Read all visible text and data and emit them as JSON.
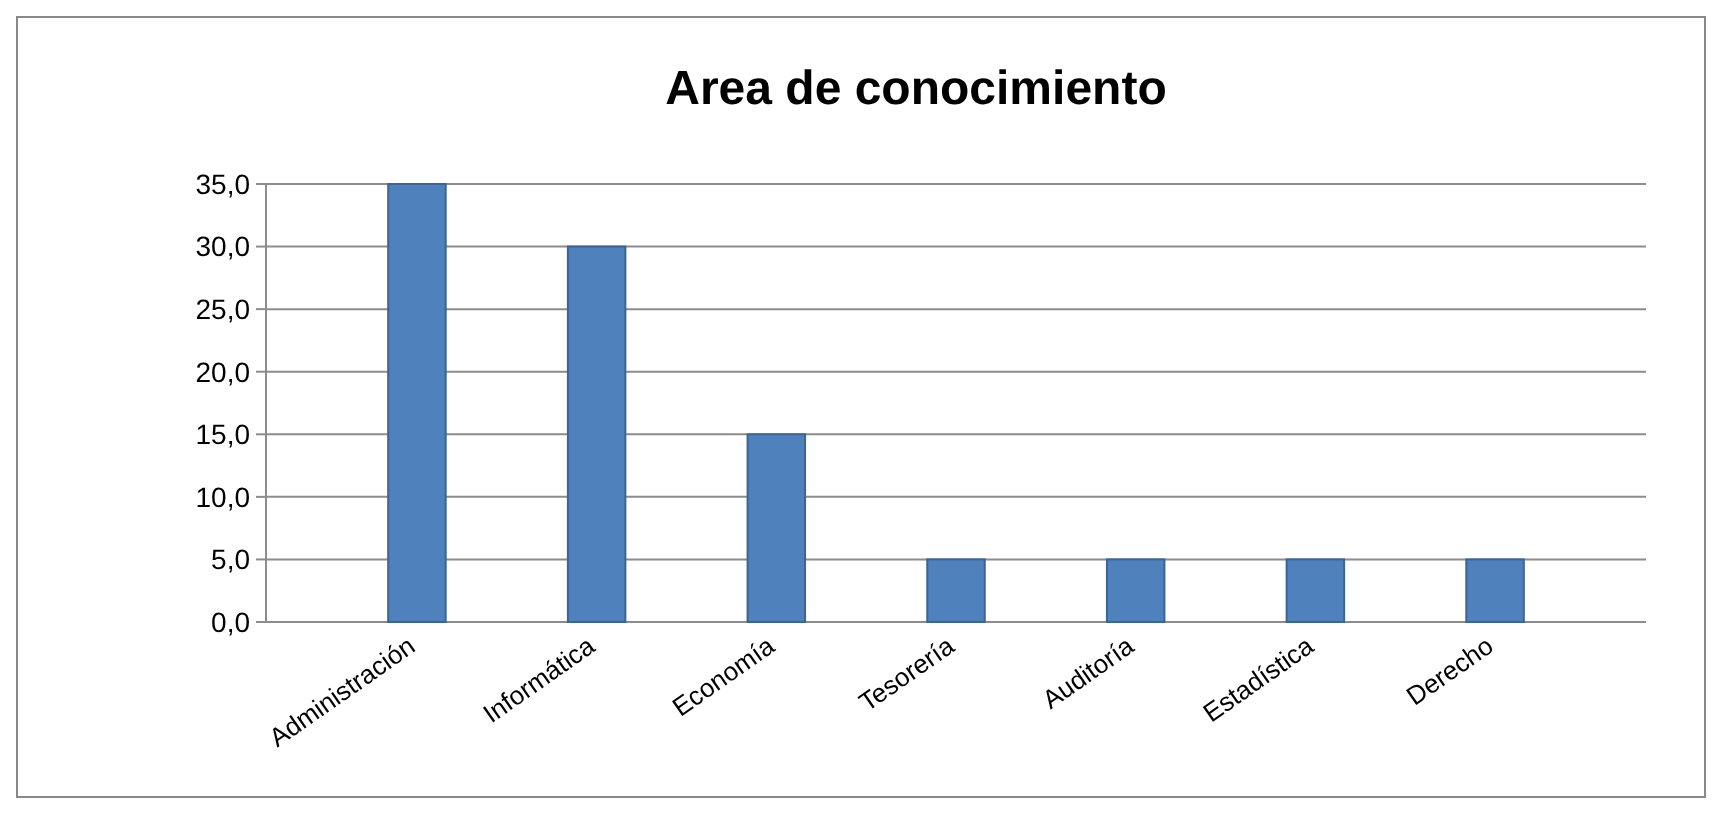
{
  "chart_data": {
    "type": "bar",
    "title": "Area de conocimiento",
    "categories": [
      "Administración",
      "Informática",
      "Economía",
      "Tesorería",
      "Auditoría",
      "Estadística",
      "Derecho"
    ],
    "values": [
      35,
      30,
      15,
      5,
      5,
      5,
      5
    ],
    "color": "#4f81bd",
    "ylim": [
      0,
      35
    ],
    "yticks": [
      {
        "value": 0,
        "label": "0,0"
      },
      {
        "value": 5,
        "label": "5,0"
      },
      {
        "value": 10,
        "label": "10,0"
      },
      {
        "value": 15,
        "label": "15,0"
      },
      {
        "value": 20,
        "label": "20,0"
      },
      {
        "value": 25,
        "label": "25,0"
      },
      {
        "value": 30,
        "label": "30,0"
      },
      {
        "value": 35,
        "label": "35,0"
      }
    ],
    "grid": "y"
  }
}
